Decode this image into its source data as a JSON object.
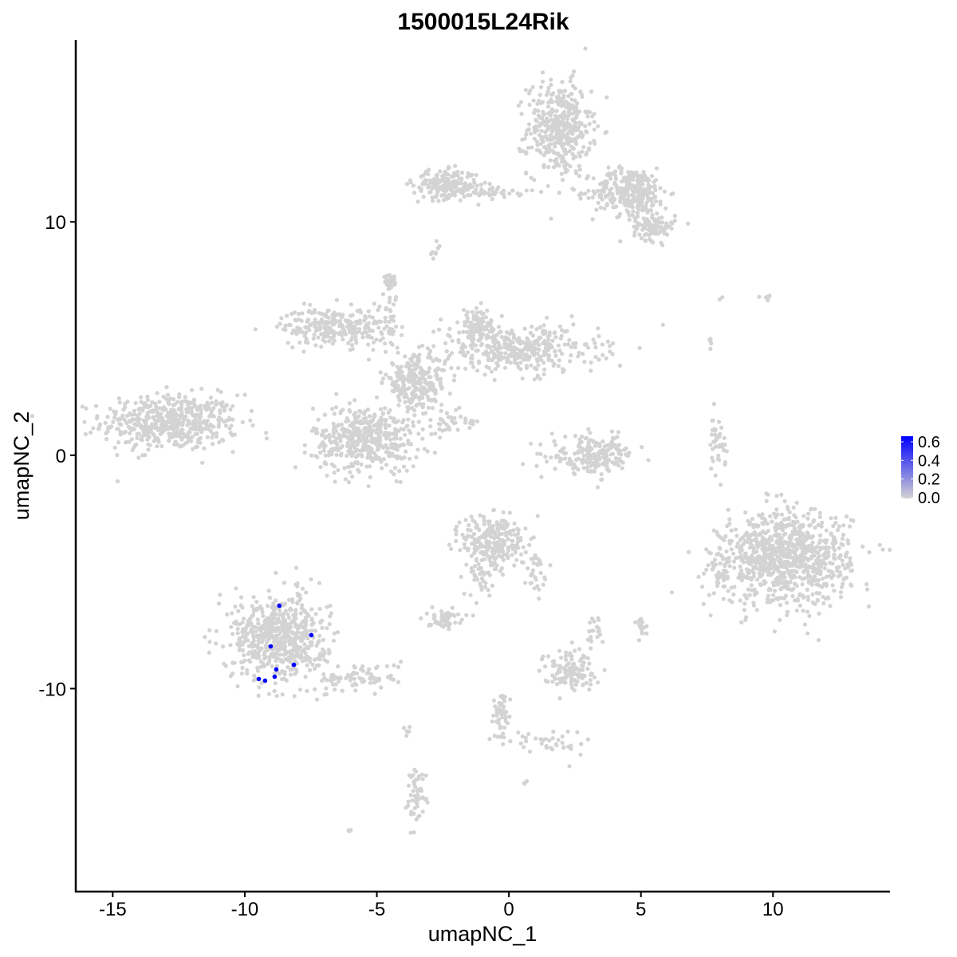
{
  "chart_data": {
    "type": "scatter",
    "title": "1500015L24Rik",
    "xlabel": "umapNC_1",
    "ylabel": "umapNC_2",
    "xlim": [
      -16.4,
      14.4
    ],
    "ylim": [
      -18.7,
      17.8
    ],
    "x_ticks": [
      -15,
      -10,
      -5,
      0,
      5,
      10
    ],
    "y_ticks": [
      -10,
      0,
      10
    ],
    "grid": false,
    "legend": {
      "placement": "right",
      "type": "colorbar",
      "ticks": [
        "0.6",
        "0.4",
        "0.2",
        "0.0"
      ],
      "range": [
        0,
        0.66
      ],
      "low_color": "#D3D3D3",
      "high_color": "#0000FF"
    },
    "background_cells": {
      "value": 0.0,
      "color": "#D3D3D3",
      "clusters": [
        {
          "center": [
            -12.8,
            1.4
          ],
          "spread": [
            1.3,
            0.6
          ],
          "count": 500
        },
        {
          "center": [
            1.9,
            14.0
          ],
          "spread": [
            0.6,
            1.0
          ],
          "count": 400
        },
        {
          "center": [
            4.6,
            11.3
          ],
          "spread": [
            0.7,
            0.5
          ],
          "count": 300
        },
        {
          "center": [
            5.5,
            9.8
          ],
          "spread": [
            0.4,
            0.3
          ],
          "count": 100
        },
        {
          "center": [
            -2.4,
            11.6
          ],
          "spread": [
            0.6,
            0.3
          ],
          "count": 200
        },
        {
          "center": [
            -0.5,
            11.3
          ],
          "spread": [
            0.6,
            0.15
          ],
          "count": 40
        },
        {
          "center": [
            -2.8,
            8.7
          ],
          "spread": [
            0.1,
            0.2
          ],
          "count": 10
        },
        {
          "center": [
            -6.6,
            5.5
          ],
          "spread": [
            1.0,
            0.4
          ],
          "count": 250
        },
        {
          "center": [
            -5.4,
            0.7
          ],
          "spread": [
            1.0,
            0.7
          ],
          "count": 450
        },
        {
          "center": [
            0.4,
            4.5
          ],
          "spread": [
            1.5,
            0.5
          ],
          "count": 350
        },
        {
          "center": [
            -1.2,
            5.5
          ],
          "spread": [
            0.5,
            0.4
          ],
          "count": 100
        },
        {
          "center": [
            -3.5,
            3.1
          ],
          "spread": [
            0.6,
            0.6
          ],
          "count": 250
        },
        {
          "center": [
            -4.5,
            7.4
          ],
          "spread": [
            0.15,
            0.15
          ],
          "count": 30
        },
        {
          "center": [
            -4.5,
            5.8
          ],
          "spread": [
            0.15,
            0.6
          ],
          "count": 30
        },
        {
          "center": [
            -2.1,
            1.4
          ],
          "spread": [
            0.5,
            0.3
          ],
          "count": 30
        },
        {
          "center": [
            3.2,
            0.0
          ],
          "spread": [
            0.8,
            0.4
          ],
          "count": 200
        },
        {
          "center": [
            7.9,
            0.4
          ],
          "spread": [
            0.15,
            0.6
          ],
          "count": 40
        },
        {
          "center": [
            10.5,
            -4.4
          ],
          "spread": [
            1.2,
            1.0
          ],
          "count": 900
        },
        {
          "center": [
            8.05,
            -4.9
          ],
          "spread": [
            0.2,
            0.5
          ],
          "count": 40
        },
        {
          "center": [
            -8.7,
            -7.8
          ],
          "spread": [
            0.9,
            0.9
          ],
          "count": 600
        },
        {
          "center": [
            -5.7,
            -9.5
          ],
          "spread": [
            0.8,
            0.3
          ],
          "count": 80
        },
        {
          "center": [
            -0.55,
            -3.7
          ],
          "spread": [
            0.6,
            0.6
          ],
          "count": 250
        },
        {
          "center": [
            -1.15,
            -5.1
          ],
          "spread": [
            0.3,
            0.5
          ],
          "count": 40
        },
        {
          "center": [
            1.0,
            -5.0
          ],
          "spread": [
            0.2,
            0.4
          ],
          "count": 30
        },
        {
          "center": [
            -2.5,
            -7.0
          ],
          "spread": [
            0.3,
            0.2
          ],
          "count": 60
        },
        {
          "center": [
            2.3,
            -9.2
          ],
          "spread": [
            0.5,
            0.4
          ],
          "count": 120
        },
        {
          "center": [
            3.2,
            -7.5
          ],
          "spread": [
            0.15,
            0.4
          ],
          "count": 20
        },
        {
          "center": [
            5.0,
            -7.3
          ],
          "spread": [
            0.1,
            0.2
          ],
          "count": 20
        },
        {
          "center": [
            -0.3,
            -11.2
          ],
          "spread": [
            0.2,
            0.6
          ],
          "count": 50
        },
        {
          "center": [
            1.5,
            -12.3
          ],
          "spread": [
            0.8,
            0.3
          ],
          "count": 40
        },
        {
          "center": [
            -3.5,
            -14.5
          ],
          "spread": [
            0.2,
            0.6
          ],
          "count": 50
        },
        {
          "center": [
            -3.85,
            -11.8
          ],
          "spread": [
            0.05,
            0.1
          ],
          "count": 5
        },
        {
          "center": [
            -6.05,
            -16.1
          ],
          "spread": [
            0.05,
            0.05
          ],
          "count": 5
        },
        {
          "center": [
            0.6,
            -14.05
          ],
          "spread": [
            0.05,
            0.05
          ],
          "count": 4
        },
        {
          "center": [
            9.85,
            6.8
          ],
          "spread": [
            0.1,
            0.1
          ],
          "count": 6
        },
        {
          "center": [
            7.65,
            4.8
          ],
          "spread": [
            0.05,
            0.1
          ],
          "count": 5
        },
        {
          "center": [
            8.4,
            6.7
          ],
          "spread": [
            0.5,
            0.05
          ],
          "count": 3
        }
      ]
    },
    "expressing_cells": [
      {
        "x": -8.69,
        "y": -6.45,
        "value": 0.66
      },
      {
        "x": -7.48,
        "y": -7.71,
        "value": 0.66
      },
      {
        "x": -9.02,
        "y": -8.19,
        "value": 0.66
      },
      {
        "x": -8.14,
        "y": -8.98,
        "value": 0.66
      },
      {
        "x": -8.81,
        "y": -9.18,
        "value": 0.66
      },
      {
        "x": -8.87,
        "y": -9.49,
        "value": 0.66
      },
      {
        "x": -9.47,
        "y": -9.59,
        "value": 0.66
      },
      {
        "x": -9.23,
        "y": -9.66,
        "value": 0.66
      }
    ]
  }
}
